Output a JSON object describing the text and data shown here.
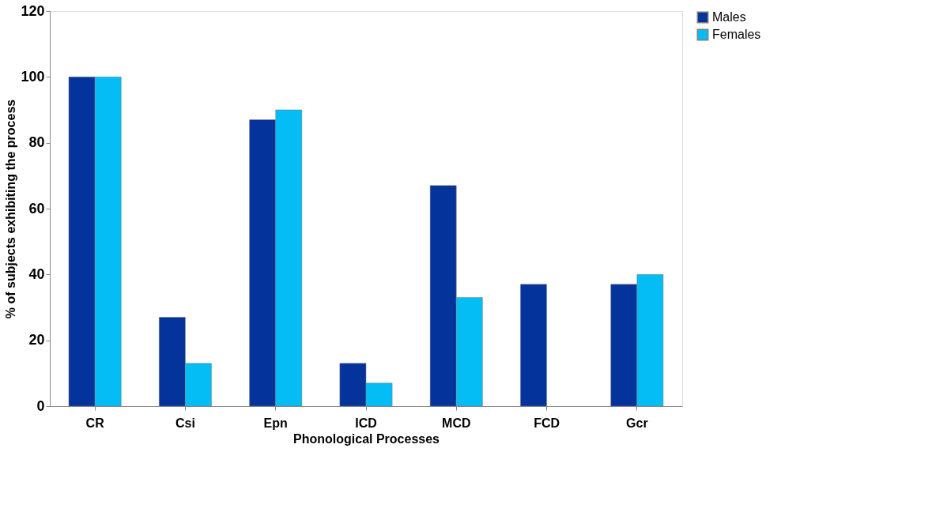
{
  "chart_data": {
    "type": "bar",
    "xlabel": "Phonological Processes",
    "ylabel": "% of subjects exhibiting the process",
    "categories": [
      "CR",
      "Csi",
      "Epn",
      "ICD",
      "MCD",
      "FCD",
      "Gcr"
    ],
    "series": [
      {
        "name": "Males",
        "color": "#05339c",
        "values": [
          100,
          27,
          87,
          13,
          67,
          37,
          37
        ]
      },
      {
        "name": "Females",
        "color": "#05bdf5",
        "values": [
          100,
          13,
          90,
          7,
          33,
          null,
          40
        ]
      }
    ],
    "ylim": [
      0,
      120
    ],
    "yticks": [
      0,
      20,
      40,
      60,
      80,
      100,
      120
    ],
    "grid": false,
    "legend": "right"
  }
}
